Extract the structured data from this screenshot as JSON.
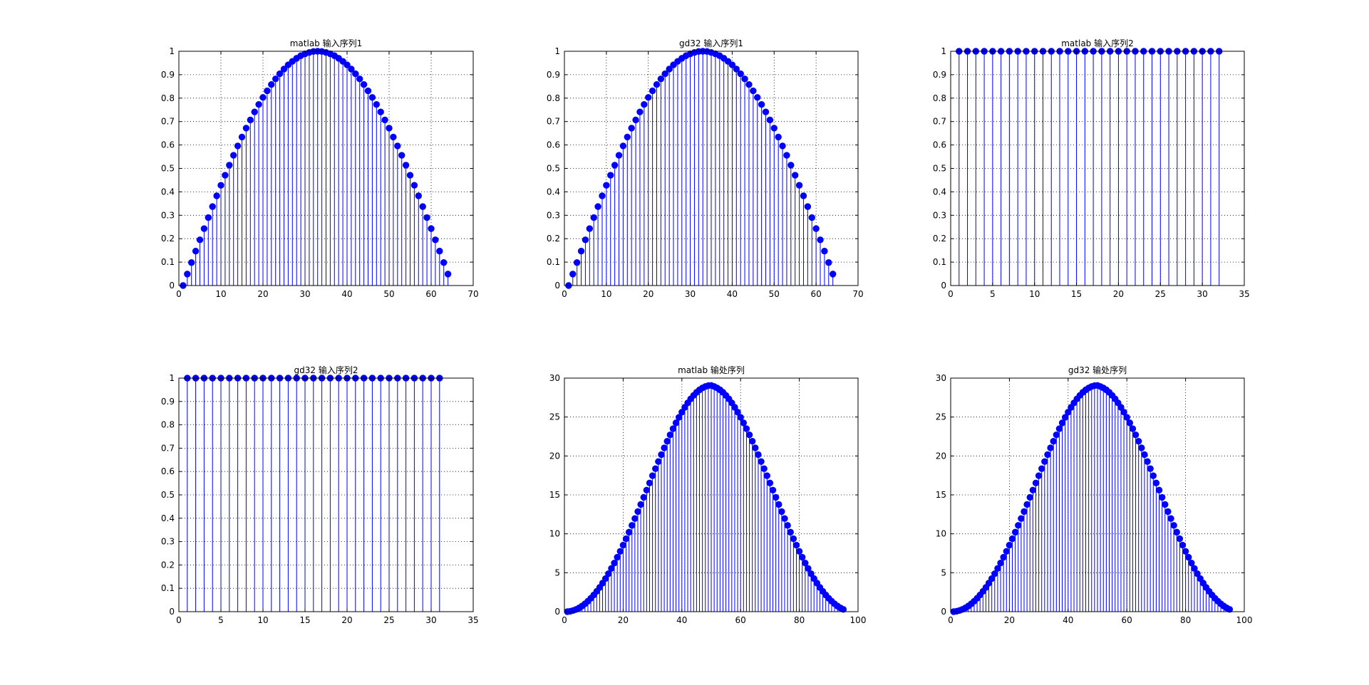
{
  "colors": {
    "stem": "#0000ff",
    "marker": "#0000ff",
    "axes": "#000000",
    "grid": "#000000",
    "background": "#ffffff"
  },
  "chart_data": [
    {
      "type": "stem",
      "title": "matlab 输入序列1",
      "xlim": [
        0,
        70
      ],
      "ylim": [
        0,
        1
      ],
      "xticks": [
        0,
        10,
        20,
        30,
        40,
        50,
        60,
        70
      ],
      "yticks": [
        0,
        0.1,
        0.2,
        0.3,
        0.4,
        0.5,
        0.6,
        0.7,
        0.8,
        0.9,
        1
      ],
      "grid": true,
      "x": [
        1,
        2,
        3,
        4,
        5,
        6,
        7,
        8,
        9,
        10,
        11,
        12,
        13,
        14,
        15,
        16,
        17,
        18,
        19,
        20,
        21,
        22,
        23,
        24,
        25,
        26,
        27,
        28,
        29,
        30,
        31,
        32,
        33,
        34,
        35,
        36,
        37,
        38,
        39,
        40,
        41,
        42,
        43,
        44,
        45,
        46,
        47,
        48,
        49,
        50,
        51,
        52,
        53,
        54,
        55,
        56,
        57,
        58,
        59,
        60,
        61,
        62,
        63,
        64
      ],
      "values": [
        0,
        0.049,
        0.098,
        0.147,
        0.195,
        0.243,
        0.29,
        0.337,
        0.383,
        0.428,
        0.471,
        0.514,
        0.556,
        0.596,
        0.634,
        0.672,
        0.707,
        0.741,
        0.773,
        0.803,
        0.831,
        0.858,
        0.882,
        0.904,
        0.924,
        0.942,
        0.957,
        0.97,
        0.981,
        0.989,
        0.995,
        0.999,
        1.0,
        0.999,
        0.995,
        0.989,
        0.981,
        0.97,
        0.957,
        0.942,
        0.924,
        0.904,
        0.882,
        0.858,
        0.831,
        0.803,
        0.773,
        0.741,
        0.707,
        0.672,
        0.634,
        0.596,
        0.556,
        0.514,
        0.471,
        0.428,
        0.383,
        0.337,
        0.29,
        0.243,
        0.195,
        0.147,
        0.098,
        0.049
      ]
    },
    {
      "type": "stem",
      "title": "gd32 输入序列1",
      "xlim": [
        0,
        70
      ],
      "ylim": [
        0,
        1
      ],
      "xticks": [
        0,
        10,
        20,
        30,
        40,
        50,
        60,
        70
      ],
      "yticks": [
        0,
        0.1,
        0.2,
        0.3,
        0.4,
        0.5,
        0.6,
        0.7,
        0.8,
        0.9,
        1
      ],
      "grid": true,
      "x": [
        1,
        2,
        3,
        4,
        5,
        6,
        7,
        8,
        9,
        10,
        11,
        12,
        13,
        14,
        15,
        16,
        17,
        18,
        19,
        20,
        21,
        22,
        23,
        24,
        25,
        26,
        27,
        28,
        29,
        30,
        31,
        32,
        33,
        34,
        35,
        36,
        37,
        38,
        39,
        40,
        41,
        42,
        43,
        44,
        45,
        46,
        47,
        48,
        49,
        50,
        51,
        52,
        53,
        54,
        55,
        56,
        57,
        58,
        59,
        60,
        61,
        62,
        63,
        64
      ],
      "values": [
        0,
        0.049,
        0.098,
        0.147,
        0.195,
        0.243,
        0.29,
        0.337,
        0.383,
        0.428,
        0.471,
        0.514,
        0.556,
        0.596,
        0.634,
        0.672,
        0.707,
        0.741,
        0.773,
        0.803,
        0.831,
        0.858,
        0.882,
        0.904,
        0.924,
        0.942,
        0.957,
        0.97,
        0.981,
        0.989,
        0.995,
        0.999,
        1.0,
        0.999,
        0.995,
        0.989,
        0.981,
        0.97,
        0.957,
        0.942,
        0.924,
        0.904,
        0.882,
        0.858,
        0.831,
        0.803,
        0.773,
        0.741,
        0.707,
        0.672,
        0.634,
        0.596,
        0.556,
        0.514,
        0.471,
        0.428,
        0.383,
        0.337,
        0.29,
        0.243,
        0.195,
        0.147,
        0.098,
        0.049
      ]
    },
    {
      "type": "stem",
      "title": "matlab 输入序列2",
      "xlim": [
        0,
        35
      ],
      "ylim": [
        0,
        1
      ],
      "xticks": [
        0,
        5,
        10,
        15,
        20,
        25,
        30,
        35
      ],
      "yticks": [
        0,
        0.1,
        0.2,
        0.3,
        0.4,
        0.5,
        0.6,
        0.7,
        0.8,
        0.9,
        1
      ],
      "grid": true,
      "x": [
        1,
        2,
        3,
        4,
        5,
        6,
        7,
        8,
        9,
        10,
        11,
        12,
        13,
        14,
        15,
        16,
        17,
        18,
        19,
        20,
        21,
        22,
        23,
        24,
        25,
        26,
        27,
        28,
        29,
        30,
        31,
        32
      ],
      "values": [
        1,
        1,
        1,
        1,
        1,
        1,
        1,
        1,
        1,
        1,
        1,
        1,
        1,
        1,
        1,
        1,
        1,
        1,
        1,
        1,
        1,
        1,
        1,
        1,
        1,
        1,
        1,
        1,
        1,
        1,
        1,
        1
      ]
    },
    {
      "type": "stem",
      "title": "gd32 输入序列2",
      "xlim": [
        0,
        35
      ],
      "ylim": [
        0,
        1
      ],
      "xticks": [
        0,
        5,
        10,
        15,
        20,
        25,
        30,
        35
      ],
      "yticks": [
        0,
        0.1,
        0.2,
        0.3,
        0.4,
        0.5,
        0.6,
        0.7,
        0.8,
        0.9,
        1
      ],
      "grid": true,
      "x": [
        1,
        2,
        3,
        4,
        5,
        6,
        7,
        8,
        9,
        10,
        11,
        12,
        13,
        14,
        15,
        16,
        17,
        18,
        19,
        20,
        21,
        22,
        23,
        24,
        25,
        26,
        27,
        28,
        29,
        30,
        31
      ],
      "values": [
        1,
        1,
        1,
        1,
        1,
        1,
        1,
        1,
        1,
        1,
        1,
        1,
        1,
        1,
        1,
        1,
        1,
        1,
        1,
        1,
        1,
        1,
        1,
        1,
        1,
        1,
        1,
        1,
        1,
        1,
        1
      ]
    },
    {
      "type": "stem",
      "title": "matlab 输处序列",
      "xlim": [
        0,
        100
      ],
      "ylim": [
        0,
        30
      ],
      "xticks": [
        0,
        20,
        40,
        60,
        80,
        100
      ],
      "yticks": [
        0,
        5,
        10,
        15,
        20,
        25,
        30
      ],
      "grid": true,
      "x": [
        1,
        2,
        3,
        4,
        5,
        6,
        7,
        8,
        9,
        10,
        11,
        12,
        13,
        14,
        15,
        16,
        17,
        18,
        19,
        20,
        21,
        22,
        23,
        24,
        25,
        26,
        27,
        28,
        29,
        30,
        31,
        32,
        33,
        34,
        35,
        36,
        37,
        38,
        39,
        40,
        41,
        42,
        43,
        44,
        45,
        46,
        47,
        48,
        49,
        50,
        51,
        52,
        53,
        54,
        55,
        56,
        57,
        58,
        59,
        60,
        61,
        62,
        63,
        64,
        65,
        66,
        67,
        68,
        69,
        70,
        71,
        72,
        73,
        74,
        75,
        76,
        77,
        78,
        79,
        80,
        81,
        82,
        83,
        84,
        85,
        86,
        87,
        88,
        89,
        90,
        91,
        92,
        93,
        94,
        95
      ],
      "values": [
        0,
        0.05,
        0.15,
        0.29,
        0.48,
        0.72,
        1.01,
        1.34,
        1.72,
        2.14,
        2.61,
        3.11,
        3.67,
        4.25,
        4.88,
        5.55,
        6.25,
        6.99,
        7.75,
        8.55,
        9.37,
        10.21,
        11.08,
        11.96,
        12.86,
        13.77,
        14.69,
        15.61,
        16.53,
        17.46,
        18.37,
        19.28,
        20.17,
        21.04,
        21.89,
        22.71,
        23.5,
        24.25,
        24.96,
        25.63,
        26.25,
        26.82,
        27.33,
        27.78,
        28.17,
        28.49,
        28.74,
        28.92,
        29.03,
        29.06,
        28.92,
        28.74,
        28.49,
        28.17,
        27.78,
        27.33,
        26.82,
        26.25,
        25.63,
        24.96,
        24.25,
        23.5,
        22.71,
        21.89,
        21.04,
        20.17,
        19.28,
        18.37,
        17.46,
        16.53,
        15.61,
        14.69,
        13.77,
        12.86,
        11.96,
        11.08,
        10.21,
        9.37,
        8.55,
        7.75,
        6.99,
        6.25,
        5.55,
        4.88,
        4.25,
        3.67,
        3.11,
        2.61,
        2.14,
        1.72,
        1.34,
        1.01,
        0.72,
        0.48,
        0.29
      ]
    },
    {
      "type": "stem",
      "title": "gd32 输处序列",
      "xlim": [
        0,
        100
      ],
      "ylim": [
        0,
        30
      ],
      "xticks": [
        0,
        20,
        40,
        60,
        80,
        100
      ],
      "yticks": [
        0,
        5,
        10,
        15,
        20,
        25,
        30
      ],
      "grid": true,
      "x": [
        1,
        2,
        3,
        4,
        5,
        6,
        7,
        8,
        9,
        10,
        11,
        12,
        13,
        14,
        15,
        16,
        17,
        18,
        19,
        20,
        21,
        22,
        23,
        24,
        25,
        26,
        27,
        28,
        29,
        30,
        31,
        32,
        33,
        34,
        35,
        36,
        37,
        38,
        39,
        40,
        41,
        42,
        43,
        44,
        45,
        46,
        47,
        48,
        49,
        50,
        51,
        52,
        53,
        54,
        55,
        56,
        57,
        58,
        59,
        60,
        61,
        62,
        63,
        64,
        65,
        66,
        67,
        68,
        69,
        70,
        71,
        72,
        73,
        74,
        75,
        76,
        77,
        78,
        79,
        80,
        81,
        82,
        83,
        84,
        85,
        86,
        87,
        88,
        89,
        90,
        91,
        92,
        93,
        94,
        95
      ],
      "values": [
        0,
        0.05,
        0.15,
        0.29,
        0.48,
        0.72,
        1.01,
        1.34,
        1.72,
        2.14,
        2.61,
        3.11,
        3.67,
        4.25,
        4.88,
        5.55,
        6.25,
        6.99,
        7.75,
        8.55,
        9.37,
        10.21,
        11.08,
        11.96,
        12.86,
        13.77,
        14.69,
        15.61,
        16.53,
        17.46,
        18.37,
        19.28,
        20.17,
        21.04,
        21.89,
        22.71,
        23.5,
        24.25,
        24.96,
        25.63,
        26.25,
        26.82,
        27.33,
        27.78,
        28.17,
        28.49,
        28.74,
        28.92,
        29.03,
        29.06,
        28.92,
        28.74,
        28.49,
        28.17,
        27.78,
        27.33,
        26.82,
        26.25,
        25.63,
        24.96,
        24.25,
        23.5,
        22.71,
        21.89,
        21.04,
        20.17,
        19.28,
        18.37,
        17.46,
        16.53,
        15.61,
        14.69,
        13.77,
        12.86,
        11.96,
        11.08,
        10.21,
        9.37,
        8.55,
        7.75,
        6.99,
        6.25,
        5.55,
        4.88,
        4.25,
        3.67,
        3.11,
        2.61,
        2.14,
        1.72,
        1.34,
        1.01,
        0.72,
        0.48,
        0.29
      ]
    }
  ]
}
